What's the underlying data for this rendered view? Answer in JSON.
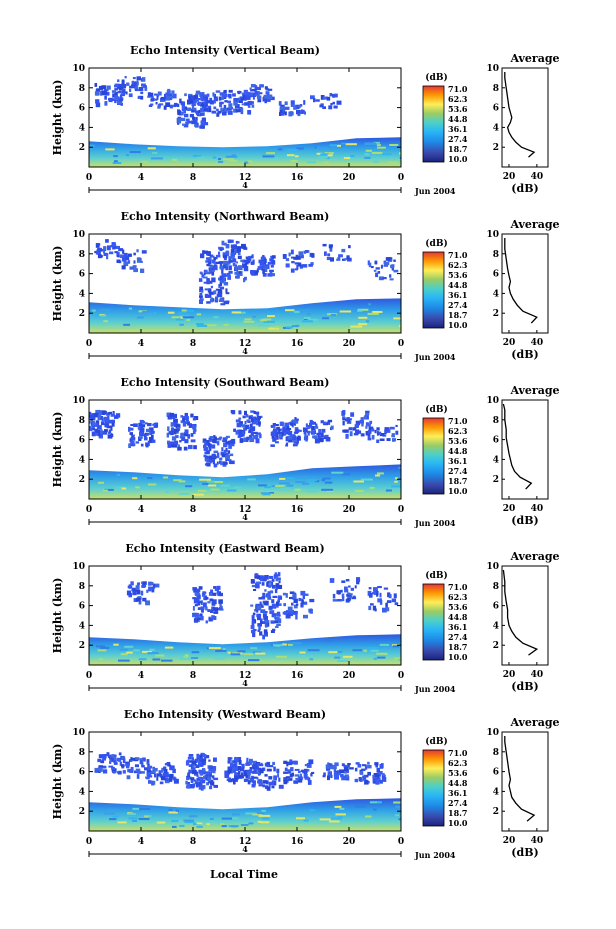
{
  "chart_data": {
    "type": "heatmap",
    "x_axis": {
      "ticks": [
        "0",
        "4",
        "8",
        "12",
        "16",
        "20",
        "0"
      ],
      "range_hours": [
        0,
        24
      ],
      "date_marker": "4",
      "date_label": "Jun 2004",
      "label": "Local Time"
    },
    "y_axis": {
      "label": "Height (km)",
      "ticks": [
        "2",
        "4",
        "6",
        "8",
        "10"
      ],
      "range_km": [
        0,
        10
      ]
    },
    "colorbar": {
      "unit": "(dB)",
      "levels": [
        "71.0",
        "62.3",
        "53.6",
        "44.8",
        "36.1",
        "27.4",
        "18.7",
        "10.0"
      ],
      "range": [
        10.0,
        71.0
      ]
    },
    "average_plot": {
      "title": "Average",
      "xlabel": "(dB)",
      "xticks": [
        "20",
        "40"
      ],
      "xrange": [
        15,
        48
      ],
      "yrange": [
        0,
        10
      ]
    },
    "panels": [
      {
        "title": "Echo Intensity (Vertical Beam)",
        "layer_top_km": [
          2.6,
          2.3,
          2.1,
          2.0,
          2.1,
          2.4,
          2.9,
          3.0
        ],
        "cloud_blocks": [
          [
            1.5,
            6.5,
            8.5,
            5
          ],
          [
            3.2,
            7.0,
            9.2,
            4
          ],
          [
            5.5,
            6.2,
            8.0,
            4
          ],
          [
            7.8,
            4.2,
            7.5,
            9
          ],
          [
            9.3,
            5.5,
            7.8,
            6
          ],
          [
            11.5,
            5.5,
            7.8,
            5
          ],
          [
            13.0,
            6.8,
            8.4,
            4
          ],
          [
            15.5,
            5.5,
            6.8,
            3
          ],
          [
            18.0,
            6.0,
            7.5,
            2
          ]
        ],
        "profile": [
          [
            34,
            1.0
          ],
          [
            38,
            1.5
          ],
          [
            29,
            2.0
          ],
          [
            25,
            2.5
          ],
          [
            22,
            3.0
          ],
          [
            20,
            3.5
          ],
          [
            19,
            4.0
          ],
          [
            21,
            4.5
          ],
          [
            22,
            5.0
          ],
          [
            21,
            5.5
          ],
          [
            20,
            6.0
          ],
          [
            19,
            7.0
          ],
          [
            18,
            8.0
          ],
          [
            17,
            9.0
          ],
          [
            17,
            9.6
          ]
        ]
      },
      {
        "title": "Echo Intensity (Northward Beam)",
        "layer_top_km": [
          3.1,
          2.8,
          2.6,
          2.4,
          2.5,
          3.0,
          3.4,
          3.5
        ],
        "cloud_blocks": [
          [
            1.5,
            7.8,
            9.5,
            3
          ],
          [
            3.0,
            6.5,
            8.5,
            3
          ],
          [
            9.5,
            3.0,
            8.5,
            12
          ],
          [
            11.0,
            5.5,
            9.5,
            8
          ],
          [
            13.0,
            6.0,
            8.0,
            5
          ],
          [
            16.0,
            6.5,
            8.5,
            3
          ],
          [
            19.0,
            7.5,
            9.0,
            2
          ],
          [
            22.5,
            5.5,
            8.0,
            3
          ]
        ],
        "profile": [
          [
            36,
            1.0
          ],
          [
            40,
            1.6
          ],
          [
            30,
            2.2
          ],
          [
            26,
            2.8
          ],
          [
            23,
            3.4
          ],
          [
            21,
            4.0
          ],
          [
            20,
            4.6
          ],
          [
            21,
            5.2
          ],
          [
            20,
            5.8
          ],
          [
            19,
            6.5
          ],
          [
            18,
            7.5
          ],
          [
            17,
            8.5
          ],
          [
            17,
            9.6
          ]
        ]
      },
      {
        "title": "Echo Intensity (Southward Beam)",
        "layer_top_km": [
          2.9,
          2.7,
          2.4,
          2.2,
          2.5,
          3.1,
          3.3,
          3.5
        ],
        "cloud_blocks": [
          [
            1.0,
            6.5,
            9.0,
            7
          ],
          [
            4.0,
            5.5,
            8.0,
            6
          ],
          [
            7.0,
            5.0,
            8.8,
            8
          ],
          [
            9.8,
            3.5,
            6.5,
            10
          ],
          [
            12.0,
            6.0,
            9.0,
            8
          ],
          [
            15.0,
            5.5,
            8.5,
            8
          ],
          [
            17.5,
            6.0,
            8.0,
            5
          ],
          [
            20.5,
            6.5,
            9.0,
            5
          ],
          [
            22.5,
            6.0,
            7.5,
            3
          ]
        ],
        "profile": [
          [
            32,
            1.0
          ],
          [
            36,
            1.6
          ],
          [
            28,
            2.2
          ],
          [
            24,
            2.8
          ],
          [
            22,
            3.4
          ],
          [
            21,
            4.0
          ],
          [
            20,
            4.6
          ],
          [
            19,
            5.4
          ],
          [
            18,
            6.2
          ],
          [
            18,
            7.0
          ],
          [
            17,
            8.0
          ],
          [
            17,
            9.0
          ],
          [
            16,
            9.6
          ]
        ]
      },
      {
        "title": "Echo Intensity (Eastward Beam)",
        "layer_top_km": [
          2.8,
          2.6,
          2.3,
          2.1,
          2.3,
          2.7,
          3.0,
          3.1
        ],
        "cloud_blocks": [
          [
            4.0,
            6.5,
            8.5,
            4
          ],
          [
            9.0,
            4.5,
            8.0,
            9
          ],
          [
            13.5,
            3.0,
            9.5,
            14
          ],
          [
            16.0,
            5.0,
            7.5,
            4
          ],
          [
            19.5,
            6.5,
            9.0,
            3
          ],
          [
            22.5,
            5.5,
            8.0,
            3
          ]
        ],
        "profile": [
          [
            34,
            1.0
          ],
          [
            40,
            1.6
          ],
          [
            30,
            2.2
          ],
          [
            25,
            2.8
          ],
          [
            22,
            3.4
          ],
          [
            20,
            4.0
          ],
          [
            19,
            4.8
          ],
          [
            19,
            5.6
          ],
          [
            18,
            6.4
          ],
          [
            17,
            7.4
          ],
          [
            17,
            8.4
          ],
          [
            16,
            9.6
          ]
        ]
      },
      {
        "title": "Echo Intensity (Westward Beam)",
        "layer_top_km": [
          2.9,
          2.7,
          2.4,
          2.2,
          2.4,
          2.9,
          3.2,
          3.3
        ],
        "cloud_blocks": [
          [
            1.5,
            6.0,
            8.0,
            5
          ],
          [
            3.5,
            5.5,
            7.5,
            4
          ],
          [
            5.5,
            5.0,
            7.0,
            5
          ],
          [
            8.5,
            4.5,
            8.0,
            12
          ],
          [
            11.5,
            5.0,
            7.5,
            8
          ],
          [
            13.5,
            4.5,
            7.0,
            6
          ],
          [
            16.0,
            5.0,
            7.5,
            5
          ],
          [
            19.0,
            5.5,
            7.0,
            4
          ],
          [
            21.5,
            5.0,
            7.0,
            5
          ]
        ],
        "profile": [
          [
            33,
            1.0
          ],
          [
            38,
            1.6
          ],
          [
            29,
            2.2
          ],
          [
            25,
            2.8
          ],
          [
            22,
            3.4
          ],
          [
            21,
            4.0
          ],
          [
            20,
            4.6
          ],
          [
            21,
            5.2
          ],
          [
            20,
            6.0
          ],
          [
            19,
            7.0
          ],
          [
            18,
            8.0
          ],
          [
            17,
            9.0
          ],
          [
            17,
            9.6
          ]
        ]
      }
    ]
  }
}
